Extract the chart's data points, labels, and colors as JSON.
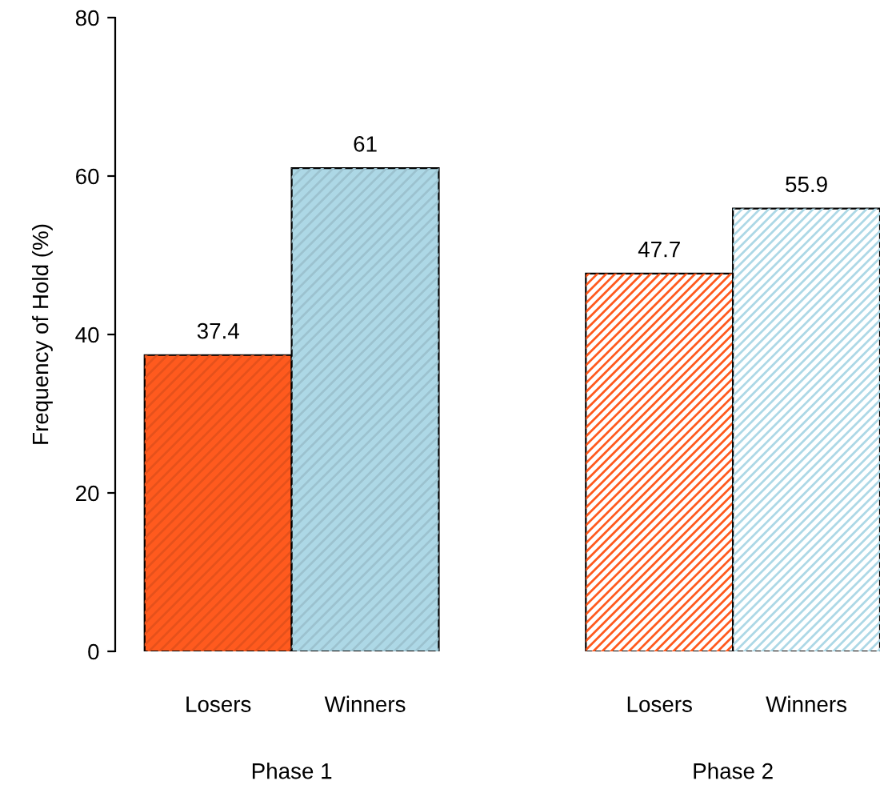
{
  "chart_data": {
    "type": "bar",
    "categories": [
      "Losers",
      "Winners",
      "Losers",
      "Winners"
    ],
    "values": [
      37.4,
      61,
      47.7,
      55.9
    ],
    "colors": [
      "#ff5a1e",
      "#add8e6",
      "#ff5a1e",
      "#add8e6"
    ],
    "ylabel": "Frequency of Hold (%)",
    "ylim": [
      0,
      80
    ],
    "yticks": [
      0,
      20,
      40,
      60,
      80
    ],
    "data_labels": true,
    "grid": false,
    "legend": false,
    "annotations": [
      "Phase 1",
      "Phase 2"
    ]
  }
}
